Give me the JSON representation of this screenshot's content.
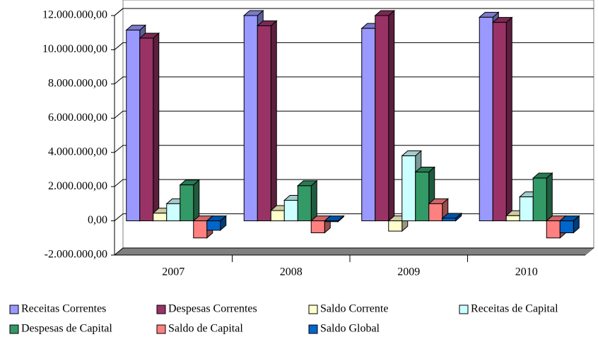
{
  "chart_data": {
    "type": "bar3d",
    "categories": [
      "2007",
      "2008",
      "2009",
      "2010"
    ],
    "series": [
      {
        "name": "Receitas Correntes",
        "color": "#9999ff",
        "values": [
          11150000,
          12000000,
          11250000,
          11900000
        ]
      },
      {
        "name": "Despesas Correntes",
        "color": "#993366",
        "values": [
          10680000,
          11400000,
          12000000,
          11600000
        ]
      },
      {
        "name": "Saldo Corrente",
        "color": "#ffffcc",
        "values": [
          450000,
          600000,
          -600000,
          300000
        ]
      },
      {
        "name": "Receitas de Capital",
        "color": "#ccffff",
        "values": [
          1000000,
          1200000,
          3800000,
          1400000
        ]
      },
      {
        "name": "Despesas de Capital",
        "color": "#339966",
        "values": [
          2100000,
          2050000,
          2850000,
          2500000
        ]
      },
      {
        "name": "Saldo de Capital",
        "color": "#ff8080",
        "values": [
          -1000000,
          -700000,
          1000000,
          -1000000
        ]
      },
      {
        "name": "Saldo Global",
        "color": "#0066cc",
        "values": [
          -550000,
          -50000,
          150000,
          -700000
        ]
      }
    ],
    "ylim": [
      -2000000,
      12000000
    ],
    "yticks": [
      {
        "value": -2000000,
        "label": "-2.000.000,00"
      },
      {
        "value": 0,
        "label": "0,00"
      },
      {
        "value": 2000000,
        "label": "2.000.000,00"
      },
      {
        "value": 4000000,
        "label": "4.000.000,00"
      },
      {
        "value": 6000000,
        "label": "6.000.000,00"
      },
      {
        "value": 8000000,
        "label": "8.000.000,00"
      },
      {
        "value": 10000000,
        "label": "10.000.000,00"
      },
      {
        "value": 12000000,
        "label": "12.000.000,00"
      }
    ],
    "grid": true,
    "legend": "bottom"
  }
}
